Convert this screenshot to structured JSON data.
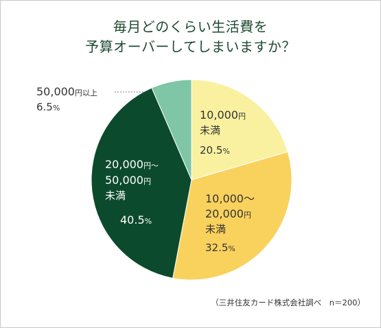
{
  "title": {
    "line1": "毎月どのくらい生活費を",
    "line2": "予算オーバーしてしまいますか？"
  },
  "source": "（三井住友カード株式会社調べ　n＝200）",
  "chart_data": {
    "type": "pie",
    "start": "12 o'clock",
    "direction": "clockwise",
    "slices": [
      {
        "label": "10,000円未満",
        "value": 20.5,
        "percent_label": "20.5%",
        "color": "#faf1a0"
      },
      {
        "label": "10,000～20,000円未満",
        "value": 32.5,
        "percent_label": "32.5%",
        "color": "#f9d25e"
      },
      {
        "label": "20,000円～50,000円未満",
        "value": 40.5,
        "percent_label": "40.5%",
        "color": "#0c4a2e"
      },
      {
        "label": "50,000円以上",
        "value": 6.5,
        "percent_label": "6.5%",
        "color": "#7ec6a6"
      }
    ]
  },
  "labels": {
    "s1_l1": "10,000",
    "s1_l1u": "円",
    "s1_l2": "未満",
    "s1_pct": "20.5",
    "s1_pctu": "%",
    "s2_l1": "10,000～",
    "s2_l2": "20,000",
    "s2_l2u": "円",
    "s2_l3": "未満",
    "s2_pct": "32.5",
    "s2_pctu": "%",
    "s3_l1": "20,000",
    "s3_l1u": "円～",
    "s3_l2": "50,000",
    "s3_l2u": "円",
    "s3_l3": "未満",
    "s3_pct": "40.5",
    "s3_pctu": "%",
    "s4_l1": "50,000",
    "s4_l1u": "円以上",
    "s4_pct": "6.5",
    "s4_pctu": "%"
  }
}
